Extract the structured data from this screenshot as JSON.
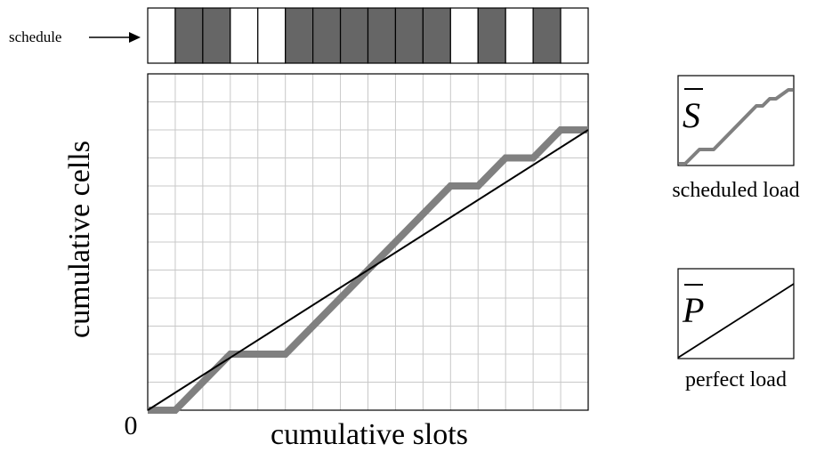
{
  "schedule": {
    "label": "schedule",
    "slots": [
      false,
      true,
      true,
      false,
      false,
      true,
      true,
      true,
      true,
      true,
      true,
      false,
      true,
      false,
      true,
      false
    ],
    "filled_color": "#666666",
    "empty_color": "#ffffff"
  },
  "main_plot": {
    "ylabel": "cumulative cells",
    "xlabel": "cumulative slots",
    "origin_label": "0",
    "grid_columns": 16,
    "grid_rows": 12,
    "scheduled_line_color": "#808080",
    "perfect_line_color": "#000000"
  },
  "chart_data": {
    "type": "line",
    "xlabel": "cumulative slots",
    "ylabel": "cumulative cells",
    "x_range": [
      0,
      16
    ],
    "y_range": [
      0,
      12
    ],
    "grid": true,
    "series": [
      {
        "x": [
          0,
          1,
          3,
          5,
          8,
          11,
          12,
          13,
          14,
          15,
          16
        ],
        "y": [
          0,
          0,
          2,
          2,
          5,
          8,
          8,
          9,
          9,
          10,
          10
        ]
      },
      {
        "x": [
          0,
          16
        ],
        "y": [
          0,
          10
        ]
      }
    ]
  },
  "legend": {
    "scheduled": {
      "symbol": "S",
      "caption": "scheduled load"
    },
    "perfect": {
      "symbol": "P",
      "caption": "perfect load"
    }
  }
}
